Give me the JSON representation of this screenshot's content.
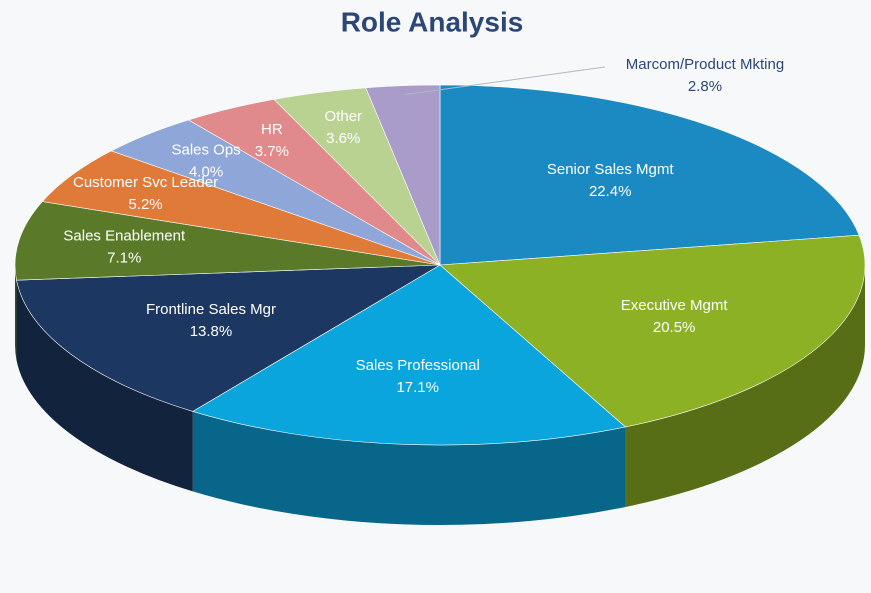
{
  "chart_data": {
    "type": "pie",
    "title": "Role Analysis",
    "categories": [
      "Senior Sales Mgmt",
      "Executive Mgmt",
      "Sales Professional",
      "Frontline Sales Mgr",
      "Sales Enablement",
      "Customer Svc Leader",
      "Sales Ops",
      "HR",
      "Other",
      "Marcom/Product Mkting"
    ],
    "values": [
      22.4,
      20.5,
      17.1,
      13.8,
      7.1,
      5.2,
      4.0,
      3.7,
      3.6,
      2.8
    ],
    "value_labels": [
      "22.4%",
      "20.5%",
      "17.1%",
      "13.8%",
      "7.1%",
      "5.2%",
      "4.0%",
      "3.7%",
      "3.6%",
      "2.8%"
    ],
    "colors": [
      "#1b8ac2",
      "#8db124",
      "#0ba5de",
      "#1c3862",
      "#5a7a2a",
      "#e07a38",
      "#8fa7d8",
      "#e08a8c",
      "#b9d291",
      "#a99bca"
    ]
  }
}
